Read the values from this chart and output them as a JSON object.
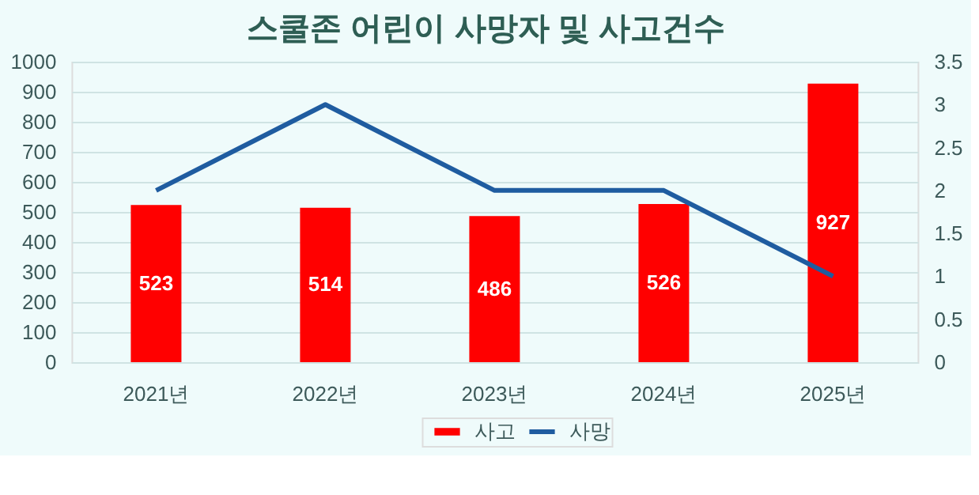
{
  "chart_data": {
    "type": "bar",
    "title": "스쿨존 어린이 사망자 및 사고건수",
    "categories": [
      "2021년",
      "2022년",
      "2023년",
      "2024년",
      "2025년"
    ],
    "series": [
      {
        "name": "사고",
        "color": "#ff0000",
        "values": [
          523,
          514,
          486,
          526,
          927
        ],
        "value_labels": [
          "523",
          "514",
          "486",
          "526",
          "927"
        ]
      },
      {
        "name": "사망",
        "type": "line",
        "axis": "y2",
        "color": "#1f5ca0",
        "values": [
          2,
          3,
          2,
          2,
          1
        ]
      }
    ],
    "ylim": [
      0,
      1000
    ],
    "yticks": [
      0,
      100,
      200,
      300,
      400,
      500,
      600,
      700,
      800,
      900,
      1000
    ],
    "y2lim": [
      0,
      3.5
    ],
    "y2ticks": [
      0,
      0.5,
      1,
      1.5,
      2,
      2.5,
      3,
      3.5
    ],
    "grid": "y",
    "legend": "bottom",
    "marker": "none",
    "line_style": "solid"
  }
}
